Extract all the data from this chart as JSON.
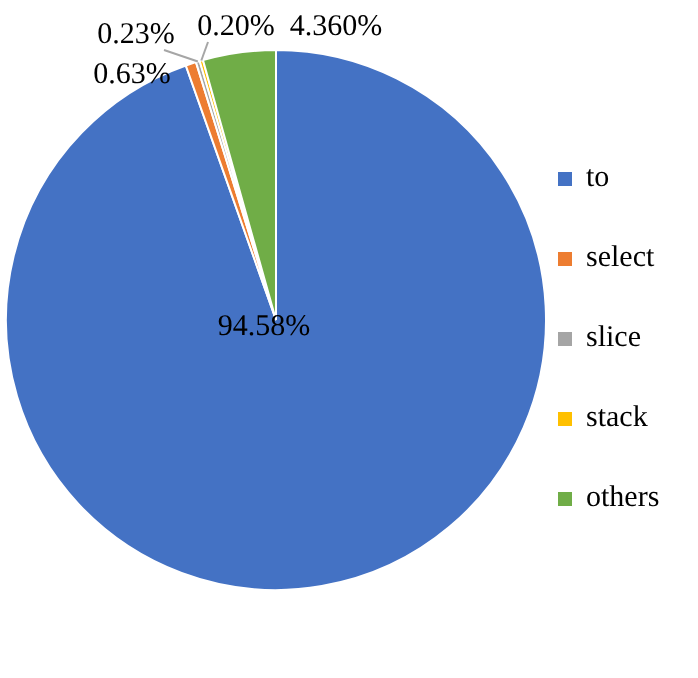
{
  "chart_data": {
    "type": "pie",
    "categories": [
      "to",
      "select",
      "slice",
      "stack",
      "others"
    ],
    "values": [
      94.58,
      0.63,
      0.23,
      0.2,
      4.36
    ],
    "value_labels": [
      "94.58%",
      "0.63%",
      "0.23%",
      "0.20%",
      "4.360%"
    ],
    "colors": [
      "#4472c4",
      "#ed7d31",
      "#a5a5a5",
      "#ffc000",
      "#70ad47"
    ],
    "legend": "right"
  }
}
